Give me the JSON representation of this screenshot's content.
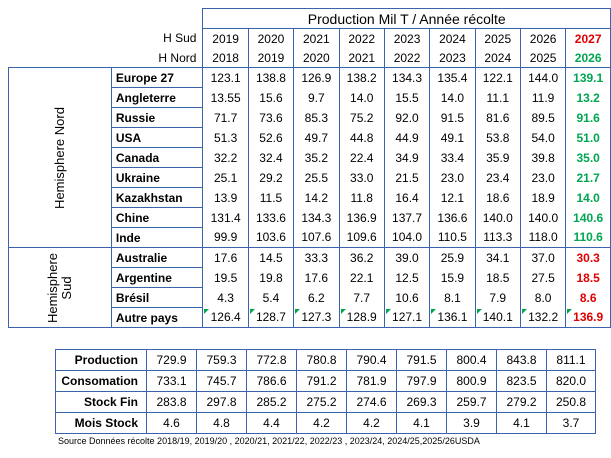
{
  "title": "Production Mil T / Année récolte",
  "hemi_labels": {
    "sud": "H Sud",
    "nord": "H Nord"
  },
  "years_sud": [
    "2019",
    "2020",
    "2021",
    "2022",
    "2023",
    "2024",
    "2025",
    "2026",
    "2027"
  ],
  "years_nord": [
    "2018",
    "2019",
    "2020",
    "2021",
    "2022",
    "2023",
    "2024",
    "2025",
    "2026"
  ],
  "groups": {
    "nord": "Hemisphere Nord",
    "sud": "Hemisphere Sud"
  },
  "rows": [
    {
      "name": "Europe 27",
      "values": [
        "123.1",
        "138.8",
        "126.9",
        "138.2",
        "134.3",
        "135.4",
        "122.1",
        "144.0",
        "139.1"
      ],
      "last_color": "#00a651"
    },
    {
      "name": "Angleterre",
      "values": [
        "13.55",
        "15.6",
        "9.7",
        "14.0",
        "15.5",
        "14.0",
        "11.1",
        "11.9",
        "13.2"
      ],
      "last_color": "#00a651"
    },
    {
      "name": "Russie",
      "values": [
        "71.7",
        "73.6",
        "85.3",
        "75.2",
        "92.0",
        "91.5",
        "81.6",
        "89.5",
        "91.6"
      ],
      "last_color": "#00a651"
    },
    {
      "name": "USA",
      "values": [
        "51.3",
        "52.6",
        "49.7",
        "44.8",
        "44.9",
        "49.1",
        "53.8",
        "54.0",
        "51.0"
      ],
      "last_color": "#00a651"
    },
    {
      "name": "Canada",
      "values": [
        "32.2",
        "32.4",
        "35.2",
        "22.4",
        "34.9",
        "33.4",
        "35.9",
        "39.8",
        "35.0"
      ],
      "last_color": "#00a651"
    },
    {
      "name": "Ukraine",
      "values": [
        "25.1",
        "29.2",
        "25.5",
        "33.0",
        "21.5",
        "23.0",
        "23.4",
        "23.0",
        "21.7"
      ],
      "last_color": "#00a651"
    },
    {
      "name": "Kazakhstan",
      "values": [
        "13.9",
        "11.5",
        "14.2",
        "11.8",
        "16.4",
        "12.1",
        "18.6",
        "18.9",
        "14.0"
      ],
      "last_color": "#00a651"
    },
    {
      "name": "Chine",
      "values": [
        "131.4",
        "133.6",
        "134.3",
        "136.9",
        "137.7",
        "136.6",
        "140.0",
        "140.0",
        "140.6"
      ],
      "last_color": "#00a651"
    },
    {
      "name": "Inde",
      "values": [
        "99.9",
        "103.6",
        "107.6",
        "109.6",
        "104.0",
        "110.5",
        "113.3",
        "118.0",
        "110.6"
      ],
      "last_color": "#00a651"
    },
    {
      "name": "Australie",
      "values": [
        "17.6",
        "14.5",
        "33.3",
        "36.2",
        "39.0",
        "25.9",
        "34.1",
        "37.0",
        "30.3"
      ],
      "last_color": "#e10000"
    },
    {
      "name": "Argentine",
      "values": [
        "19.5",
        "19.8",
        "17.6",
        "22.1",
        "12.5",
        "15.9",
        "18.5",
        "27.5",
        "18.5"
      ],
      "last_color": "#e10000"
    },
    {
      "name": "Brésil",
      "values": [
        "4.3",
        "5.4",
        "6.2",
        "7.7",
        "10.6",
        "8.1",
        "7.9",
        "8.0",
        "8.6"
      ],
      "last_color": "#e10000"
    },
    {
      "name": "Autre pays",
      "values": [
        "126.4",
        "128.7",
        "127.3",
        "128.9",
        "127.1",
        "136.1",
        "140.1",
        "132.2",
        "136.9"
      ],
      "last_color": "#e10000"
    }
  ],
  "totals": [
    {
      "name": "Production",
      "values": [
        "729.9",
        "759.3",
        "772.8",
        "780.8",
        "790.4",
        "791.5",
        "800.4",
        "843.8",
        "811.1"
      ]
    },
    {
      "name": "Consomation",
      "values": [
        "733.1",
        "745.7",
        "786.6",
        "791.2",
        "781.9",
        "797.9",
        "800.9",
        "823.5",
        "820.0"
      ]
    },
    {
      "name": "Stock Fin",
      "values": [
        "283.8",
        "297.8",
        "285.2",
        "275.2",
        "274.6",
        "269.3",
        "259.7",
        "279.2",
        "250.8"
      ]
    },
    {
      "name": "Mois Stock",
      "values": [
        "4.6",
        "4.8",
        "4.4",
        "4.2",
        "4.2",
        "4.1",
        "3.9",
        "4.1",
        "3.7"
      ]
    }
  ],
  "source": "Source Données récolte 2018/19,  2019/20 , 2020/21, 2021/22, 2022/23 , 2023/24, 2024/25,2025/26USDA",
  "colors": {
    "border": "#3b63ad",
    "green": "#00a651",
    "red": "#e10000"
  }
}
